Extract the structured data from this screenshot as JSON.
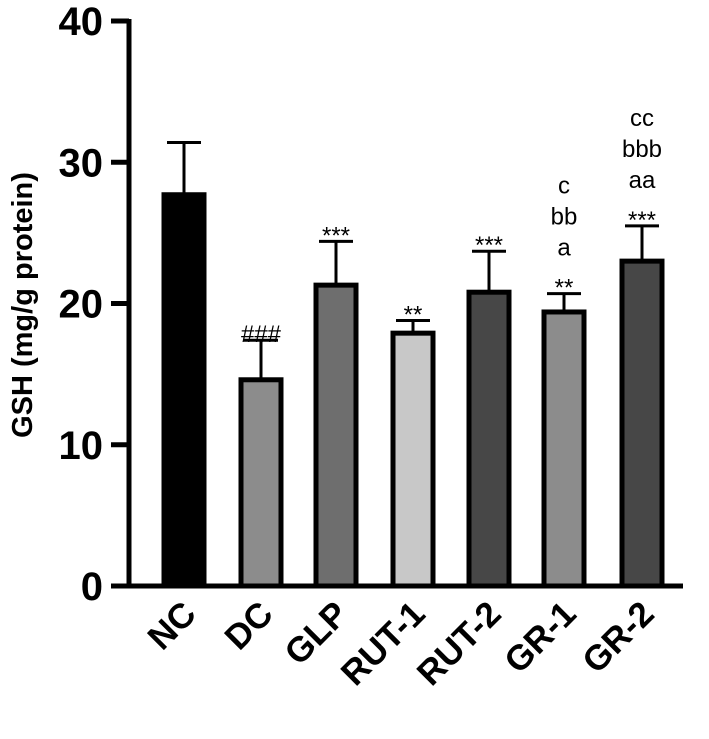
{
  "chart_data": {
    "type": "bar",
    "title": "",
    "xlabel": "",
    "ylabel": "GSH (mg/g protein)",
    "ylim": [
      0,
      40
    ],
    "yticks": [
      0,
      10,
      20,
      30,
      40
    ],
    "ytick_labels": [
      "0",
      "10",
      "20",
      "30",
      "40"
    ],
    "categories": [
      "NC",
      "DC",
      "GLP",
      "RUT-1",
      "RUT-2",
      "GR-1",
      "GR-2"
    ],
    "values": [
      27.7,
      14.6,
      21.3,
      17.9,
      20.8,
      19.4,
      23.0
    ],
    "errors": [
      3.7,
      2.8,
      3.1,
      0.9,
      2.9,
      1.3,
      2.5
    ],
    "bar_colors": [
      "#000000",
      "#8c8c8c",
      "#6e6e6e",
      "#c8c8c8",
      "#474747",
      "#8c8c8c",
      "#474747"
    ],
    "annotations": [
      [],
      [
        "###"
      ],
      [
        "***"
      ],
      [
        "**"
      ],
      [
        "***"
      ],
      [
        "**",
        "a",
        "bb",
        "c"
      ],
      [
        "***",
        "aa",
        "bbb",
        "cc"
      ]
    ]
  }
}
